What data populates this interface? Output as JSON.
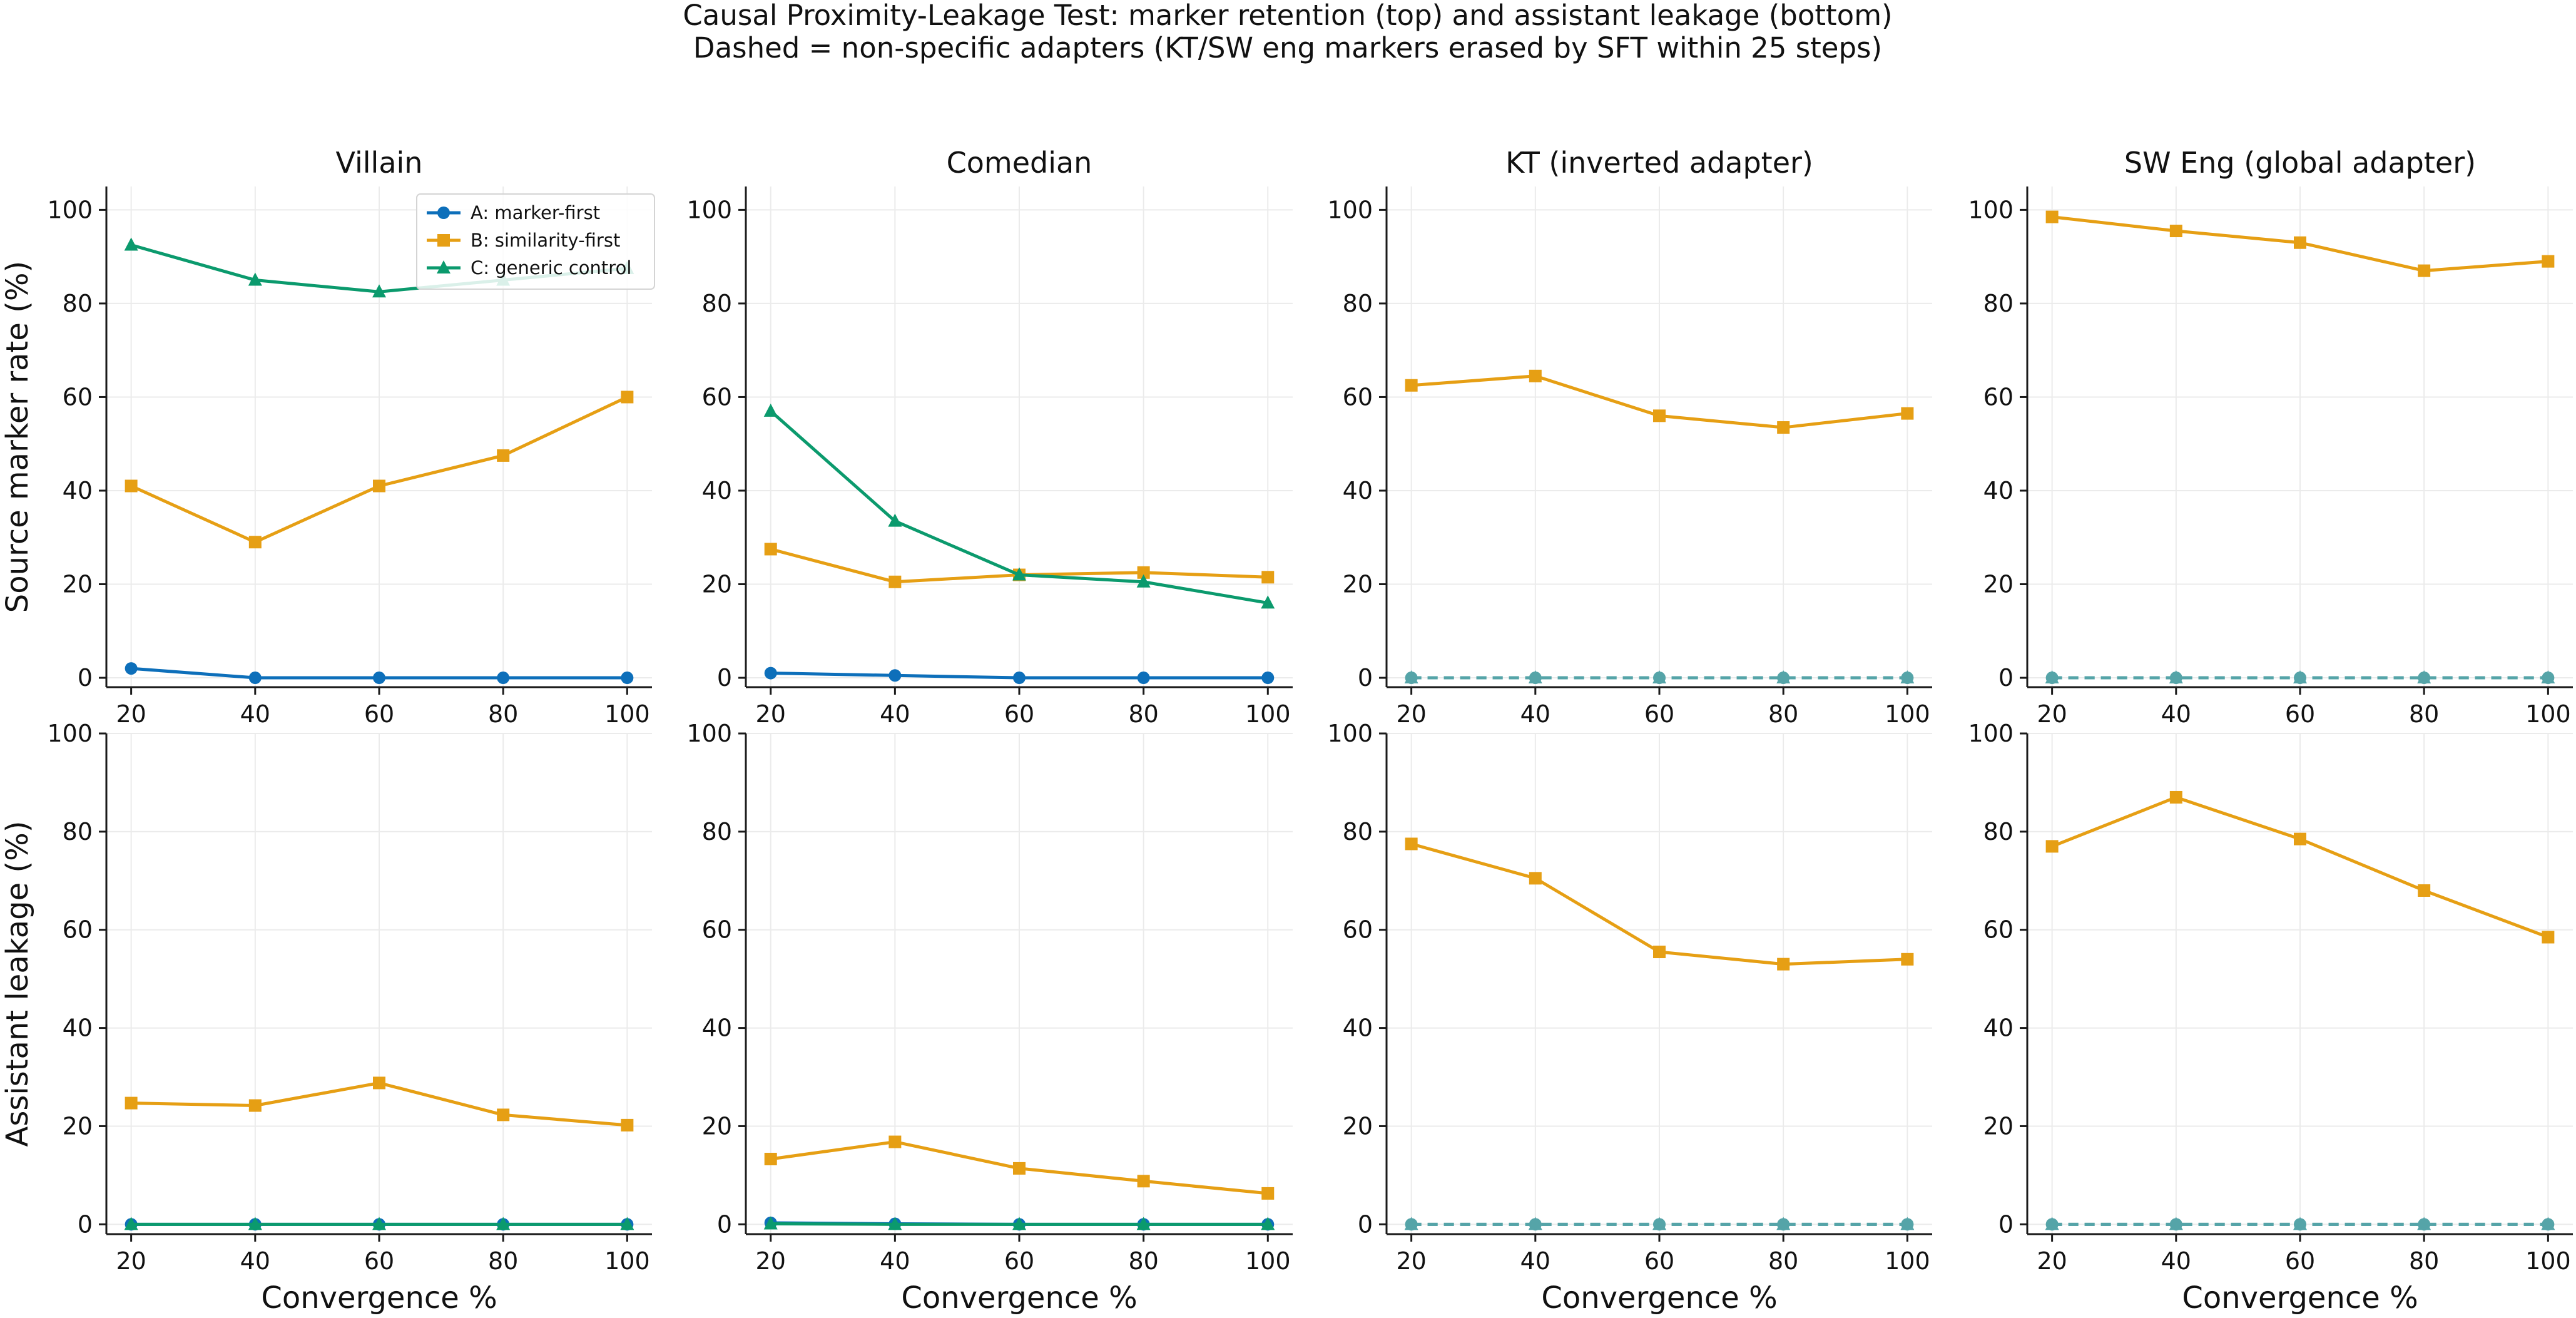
{
  "figure": {
    "title_line1": "Causal Proximity-Leakage Test: marker retention (top) and assistant leakage (bottom)",
    "title_line2": "Dashed = non-specific adapters (KT/SW eng markers erased by SFT within 25 steps)"
  },
  "colors": {
    "A": "#0d6fba",
    "B": "#e69f14",
    "C": "#0b9a6d",
    "dashed": "#55a4a8"
  },
  "legend": [
    {
      "key": "A",
      "label": "A: marker-first",
      "marker": "circle"
    },
    {
      "key": "B",
      "label": "B: similarity-first",
      "marker": "square"
    },
    {
      "key": "C",
      "label": "C: generic control",
      "marker": "triangle"
    }
  ],
  "chart_data": [
    {
      "type": "line",
      "row": 0,
      "col": 0,
      "title": "Villain",
      "xlabel": "",
      "ylabel": "Source marker rate (%)",
      "x": [
        20,
        40,
        60,
        80,
        100
      ],
      "xlim": [
        16,
        104
      ],
      "ylim": [
        -2,
        105
      ],
      "yticks": [
        0,
        20,
        40,
        60,
        80,
        100
      ],
      "grid": true,
      "legend": "top-right",
      "series": [
        {
          "name": "A: marker-first",
          "key": "A",
          "values": [
            2,
            0,
            0,
            0,
            0
          ]
        },
        {
          "name": "B: similarity-first",
          "key": "B",
          "values": [
            41,
            29,
            41,
            47.5,
            60
          ]
        },
        {
          "name": "C: generic control",
          "key": "C",
          "values": [
            92.5,
            85,
            82.5,
            85,
            87.5
          ]
        }
      ]
    },
    {
      "type": "line",
      "row": 0,
      "col": 1,
      "title": "Comedian",
      "xlabel": "",
      "ylabel": "",
      "x": [
        20,
        40,
        60,
        80,
        100
      ],
      "xlim": [
        16,
        104
      ],
      "ylim": [
        -2,
        105
      ],
      "yticks": [
        0,
        20,
        40,
        60,
        80,
        100
      ],
      "grid": true,
      "series": [
        {
          "key": "A",
          "values": [
            1,
            0.5,
            0,
            0,
            0
          ]
        },
        {
          "key": "B",
          "values": [
            27.5,
            20.5,
            22,
            22.5,
            21.5
          ]
        },
        {
          "key": "C",
          "values": [
            57,
            33.5,
            22,
            20.5,
            16
          ]
        }
      ]
    },
    {
      "type": "line",
      "row": 0,
      "col": 2,
      "title": "KT (inverted adapter)",
      "xlabel": "",
      "ylabel": "",
      "x": [
        20,
        40,
        60,
        80,
        100
      ],
      "xlim": [
        16,
        104
      ],
      "ylim": [
        -2,
        105
      ],
      "yticks": [
        0,
        20,
        40,
        60,
        80,
        100
      ],
      "grid": true,
      "series": [
        {
          "key": "A",
          "values": [
            0,
            0,
            0,
            0,
            0
          ],
          "dashed": true
        },
        {
          "key": "C",
          "values": [
            0,
            0,
            0,
            0,
            0
          ],
          "dashed": true
        },
        {
          "key": "B",
          "values": [
            62.5,
            64.5,
            56,
            53.5,
            56.5
          ]
        }
      ]
    },
    {
      "type": "line",
      "row": 0,
      "col": 3,
      "title": "SW Eng (global adapter)",
      "xlabel": "",
      "ylabel": "",
      "x": [
        20,
        40,
        60,
        80,
        100
      ],
      "xlim": [
        16,
        104
      ],
      "ylim": [
        -2,
        105
      ],
      "yticks": [
        0,
        20,
        40,
        60,
        80,
        100
      ],
      "grid": true,
      "series": [
        {
          "key": "A",
          "values": [
            0,
            0,
            0,
            0,
            0
          ],
          "dashed": true
        },
        {
          "key": "C",
          "values": [
            0,
            0,
            0,
            0,
            0
          ],
          "dashed": true
        },
        {
          "key": "B",
          "values": [
            98.5,
            95.5,
            93,
            87,
            89
          ]
        }
      ]
    },
    {
      "type": "line",
      "row": 1,
      "col": 0,
      "title": "",
      "xlabel": "Convergence %",
      "ylabel": "Assistant leakage (%)",
      "x": [
        20,
        40,
        60,
        80,
        100
      ],
      "xlim": [
        16,
        104
      ],
      "ylim": [
        -2,
        100
      ],
      "yticks": [
        0,
        20,
        40,
        60,
        80,
        100
      ],
      "grid": true,
      "series": [
        {
          "key": "A",
          "values": [
            0,
            0,
            0,
            0,
            0
          ]
        },
        {
          "key": "B",
          "values": [
            24.7,
            24.2,
            28.8,
            22.3,
            20.2
          ]
        },
        {
          "key": "C",
          "values": [
            0,
            0,
            0,
            0,
            0
          ]
        }
      ]
    },
    {
      "type": "line",
      "row": 1,
      "col": 1,
      "title": "",
      "xlabel": "Convergence %",
      "ylabel": "",
      "x": [
        20,
        40,
        60,
        80,
        100
      ],
      "xlim": [
        16,
        104
      ],
      "ylim": [
        -2,
        100
      ],
      "yticks": [
        0,
        20,
        40,
        60,
        80,
        100
      ],
      "grid": true,
      "series": [
        {
          "key": "A",
          "values": [
            0.3,
            0.1,
            0,
            0,
            0
          ]
        },
        {
          "key": "B",
          "values": [
            13.3,
            16.8,
            11.4,
            8.8,
            6.3
          ]
        },
        {
          "key": "C",
          "values": [
            0.1,
            0,
            0,
            0,
            0
          ]
        }
      ]
    },
    {
      "type": "line",
      "row": 1,
      "col": 2,
      "title": "",
      "xlabel": "Convergence %",
      "ylabel": "",
      "x": [
        20,
        40,
        60,
        80,
        100
      ],
      "xlim": [
        16,
        104
      ],
      "ylim": [
        -2,
        100
      ],
      "yticks": [
        0,
        20,
        40,
        60,
        80,
        100
      ],
      "grid": true,
      "series": [
        {
          "key": "A",
          "values": [
            0,
            0,
            0,
            0,
            0
          ],
          "dashed": true
        },
        {
          "key": "C",
          "values": [
            0,
            0,
            0,
            0,
            0
          ],
          "dashed": true
        },
        {
          "key": "B",
          "values": [
            77.5,
            70.5,
            55.5,
            53,
            54
          ]
        }
      ]
    },
    {
      "type": "line",
      "row": 1,
      "col": 3,
      "title": "",
      "xlabel": "Convergence %",
      "ylabel": "",
      "x": [
        20,
        40,
        60,
        80,
        100
      ],
      "xlim": [
        16,
        104
      ],
      "ylim": [
        -2,
        100
      ],
      "yticks": [
        0,
        20,
        40,
        60,
        80,
        100
      ],
      "grid": true,
      "series": [
        {
          "key": "A",
          "values": [
            0,
            0,
            0,
            0,
            0
          ],
          "dashed": true
        },
        {
          "key": "C",
          "values": [
            0,
            0,
            0,
            0,
            0
          ],
          "dashed": true
        },
        {
          "key": "B",
          "values": [
            77,
            87,
            78.5,
            68,
            58.5
          ]
        }
      ]
    }
  ]
}
